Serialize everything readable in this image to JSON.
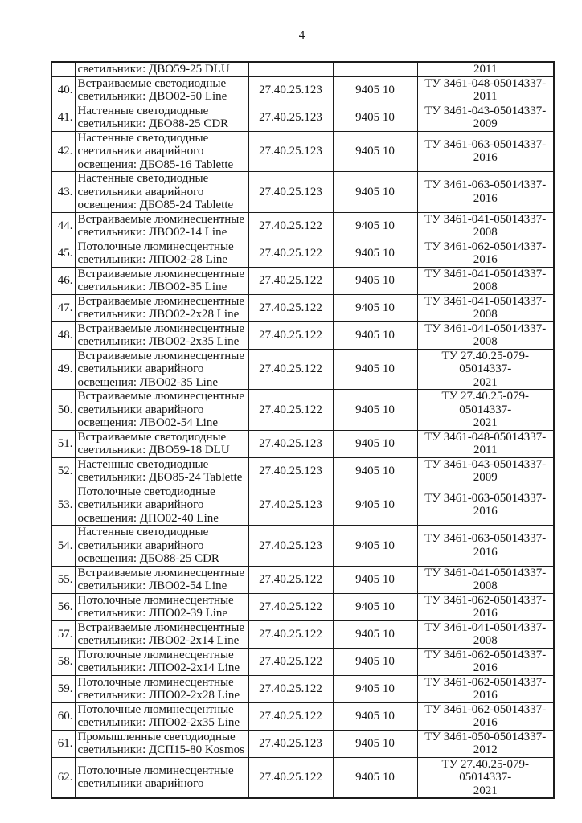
{
  "page": {
    "number": "4"
  },
  "table": {
    "rows": [
      {
        "num": "",
        "desc": "светильники: ДВО59-25 DLU",
        "okpd": "",
        "tnved": "",
        "tu": "2011"
      },
      {
        "num": "40.",
        "desc": "Встраиваемые светодиодные светильники: ДВО02-50 Line",
        "okpd": "27.40.25.123",
        "tnved": "9405 10",
        "tu": "ТУ 3461-048-05014337-2011"
      },
      {
        "num": "41.",
        "desc": "Настенные светодиодные светильники: ДБО88-25 CDR",
        "okpd": "27.40.25.123",
        "tnved": "9405 10",
        "tu": "ТУ 3461-043-05014337-2009"
      },
      {
        "num": "42.",
        "desc": "Настенные светодиодные светильники аварийного освещения: ДБО85-16 Tablette",
        "okpd": "27.40.25.123",
        "tnved": "9405 10",
        "tu": "ТУ 3461-063-05014337-2016"
      },
      {
        "num": "43.",
        "desc": "Настенные светодиодные светильники аварийного освещения: ДБО85-24 Tablette",
        "okpd": "27.40.25.123",
        "tnved": "9405 10",
        "tu": "ТУ 3461-063-05014337-2016"
      },
      {
        "num": "44.",
        "desc": "Встраиваемые люминесцентные светильники: ЛВО02-14 Line",
        "okpd": "27.40.25.122",
        "tnved": "9405 10",
        "tu": "ТУ 3461-041-05014337-2008"
      },
      {
        "num": "45.",
        "desc": "Потолочные люминесцентные светильники: ЛПО02-28 Line",
        "okpd": "27.40.25.122",
        "tnved": "9405 10",
        "tu": "ТУ 3461-062-05014337-2016"
      },
      {
        "num": "46.",
        "desc": "Встраиваемые люминесцентные светильники: ЛВО02-35 Line",
        "okpd": "27.40.25.122",
        "tnved": "9405 10",
        "tu": "ТУ 3461-041-05014337-2008"
      },
      {
        "num": "47.",
        "desc": "Встраиваемые люминесцентные светильники: ЛВО02-2x28 Line",
        "okpd": "27.40.25.122",
        "tnved": "9405 10",
        "tu": "ТУ 3461-041-05014337-2008"
      },
      {
        "num": "48.",
        "desc": "Встраиваемые люминесцентные светильники: ЛВО02-2x35 Line",
        "okpd": "27.40.25.122",
        "tnved": "9405 10",
        "tu": "ТУ 3461-041-05014337-2008"
      },
      {
        "num": "49.",
        "desc": "Встраиваемые люминесцентные светильники аварийного освещения: ЛВО02-35 Line",
        "okpd": "27.40.25.122",
        "tnved": "9405 10",
        "tu": "ТУ 27.40.25-079-05014337-2021"
      },
      {
        "num": "50.",
        "desc": "Встраиваемые люминесцентные светильники аварийного освещения: ЛВО02-54 Line",
        "okpd": "27.40.25.122",
        "tnved": "9405 10",
        "tu": "ТУ 27.40.25-079-05014337-2021"
      },
      {
        "num": "51.",
        "desc": "Встраиваемые светодиодные светильники: ДВО59-18 DLU",
        "okpd": "27.40.25.123",
        "tnved": "9405 10",
        "tu": "ТУ 3461-048-05014337-2011"
      },
      {
        "num": "52.",
        "desc": "Настенные светодиодные светильники: ДБО85-24 Tablette",
        "okpd": "27.40.25.123",
        "tnved": "9405 10",
        "tu": "ТУ 3461-043-05014337-2009"
      },
      {
        "num": "53.",
        "desc": "Потолочные светодиодные светильники аварийного освещения: ДПО02-40 Line",
        "okpd": "27.40.25.123",
        "tnved": "9405 10",
        "tu": "ТУ 3461-063-05014337-2016"
      },
      {
        "num": "54.",
        "desc": "Настенные светодиодные светильники аварийного освещения: ДБО88-25 CDR",
        "okpd": "27.40.25.123",
        "tnved": "9405 10",
        "tu": "ТУ 3461-063-05014337-2016"
      },
      {
        "num": "55.",
        "desc": "Встраиваемые люминесцентные светильники: ЛВО02-54 Line",
        "okpd": "27.40.25.122",
        "tnved": "9405 10",
        "tu": "ТУ 3461-041-05014337-2008"
      },
      {
        "num": "56.",
        "desc": "Потолочные люминесцентные светильники: ЛПО02-39 Line",
        "okpd": "27.40.25.122",
        "tnved": "9405 10",
        "tu": "ТУ 3461-062-05014337-2016"
      },
      {
        "num": "57.",
        "desc": "Встраиваемые люминесцентные светильники: ЛВО02-2x14 Line",
        "okpd": "27.40.25.122",
        "tnved": "9405 10",
        "tu": "ТУ 3461-041-05014337-2008"
      },
      {
        "num": "58.",
        "desc": "Потолочные люминесцентные светильники: ЛПО02-2x14 Line",
        "okpd": "27.40.25.122",
        "tnved": "9405 10",
        "tu": "ТУ 3461-062-05014337-2016"
      },
      {
        "num": "59.",
        "desc": "Потолочные люминесцентные светильники: ЛПО02-2x28 Line",
        "okpd": "27.40.25.122",
        "tnved": "9405 10",
        "tu": "ТУ 3461-062-05014337-2016"
      },
      {
        "num": "60.",
        "desc": "Потолочные люминесцентные светильники: ЛПО02-2x35 Line",
        "okpd": "27.40.25.122",
        "tnved": "9405 10",
        "tu": "ТУ 3461-062-05014337-2016"
      },
      {
        "num": "61.",
        "desc": "Промышленные светодиодные светильники: ДСП15-80 Kosmos",
        "okpd": "27.40.25.123",
        "tnved": "9405 10",
        "tu": "ТУ 3461-050-05014337-2012"
      },
      {
        "num": "62.",
        "desc": "Потолочные люминесцентные светильники аварийного",
        "okpd": "27.40.25.122",
        "tnved": "9405 10",
        "tu": "ТУ 27.40.25-079-05014337-2021"
      }
    ]
  }
}
